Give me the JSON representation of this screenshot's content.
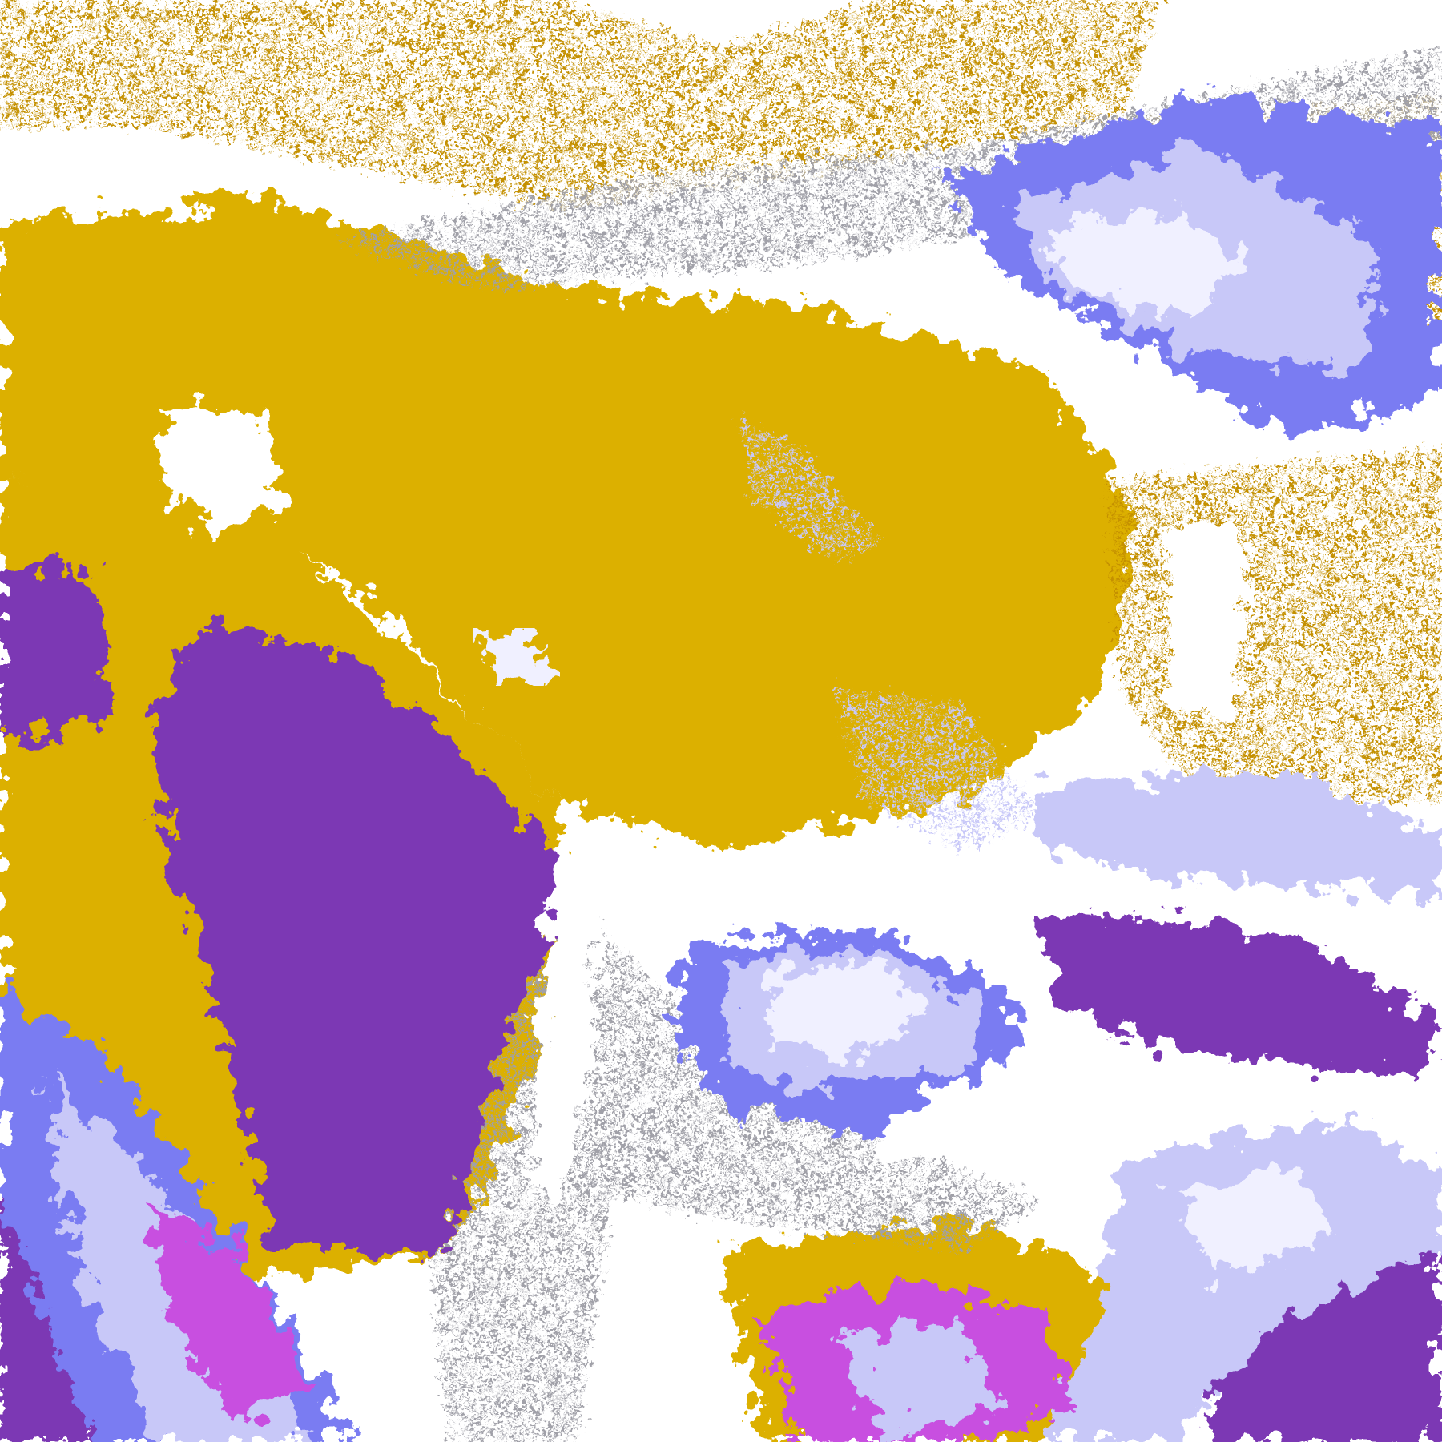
{
  "image": {
    "kind": "false-color satellite cloud classification",
    "palette": {
      "clear": "#ffffff",
      "gold": "#dcb000",
      "dark_gold": "#c49000",
      "purple": "#7b38b4",
      "magenta": "#c850e0",
      "blue": "#7a7cf2",
      "lavender": "#c8c8f8",
      "pale": "#f0f0ff",
      "gray": "#a0a0a8"
    }
  }
}
